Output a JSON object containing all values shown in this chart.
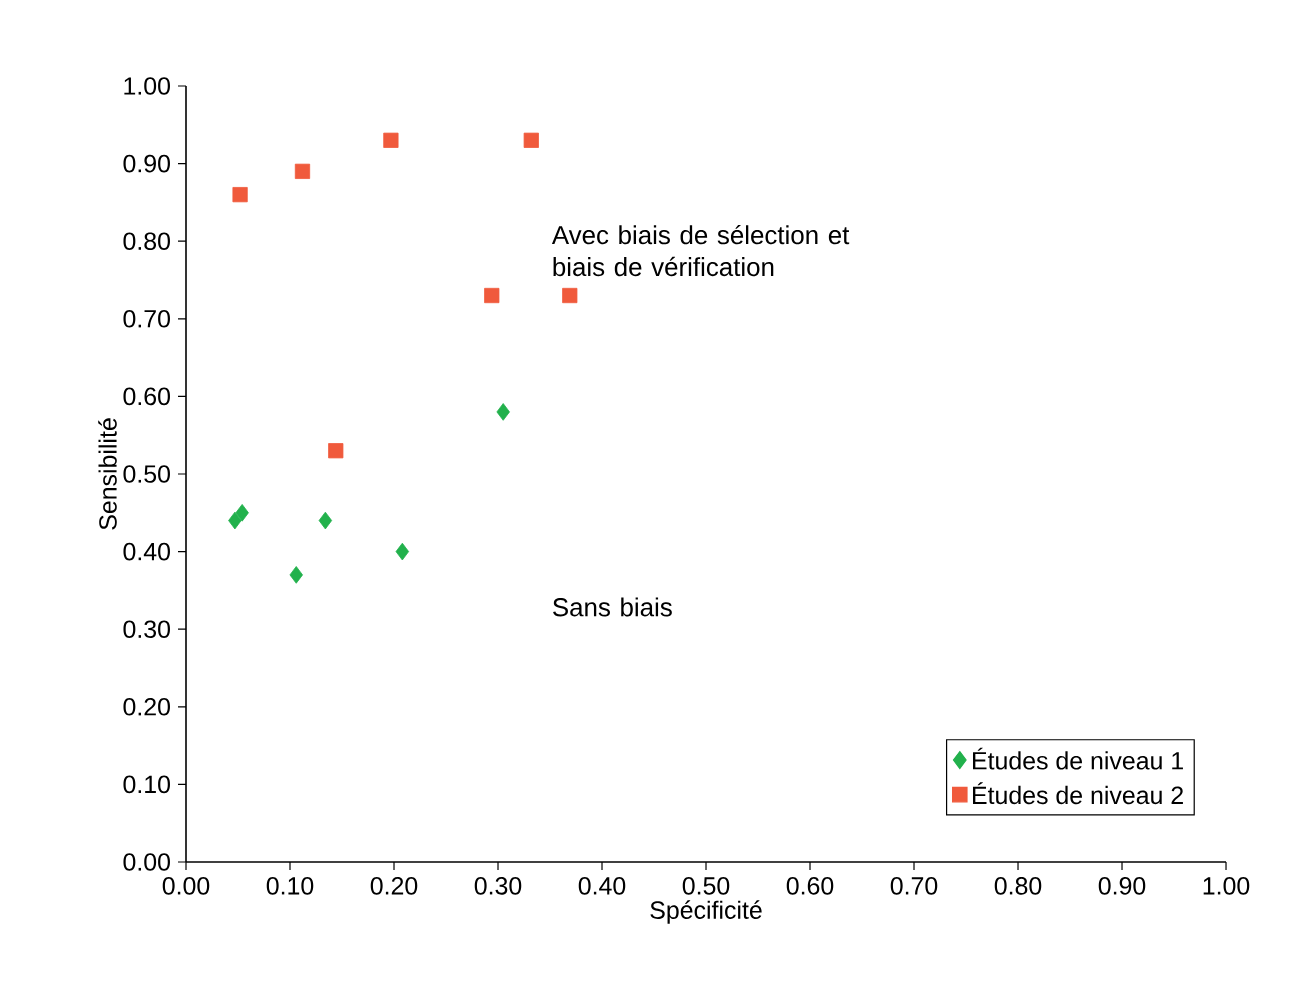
{
  "chart_data": {
    "type": "scatter",
    "xlabel": "Spécificité",
    "ylabel": "Sensibilité",
    "xlim": [
      0,
      1
    ],
    "ylim": [
      0,
      1
    ],
    "xticks": [
      {
        "value": 0,
        "label": "0.00"
      },
      {
        "value": 0.1,
        "label": "0.10"
      },
      {
        "value": 0.2,
        "label": "0.20"
      },
      {
        "value": 0.3,
        "label": "0.30"
      },
      {
        "value": 0.4,
        "label": "0.40"
      },
      {
        "value": 0.5,
        "label": "0.50"
      },
      {
        "value": 0.6,
        "label": "0.60"
      },
      {
        "value": 0.7,
        "label": "0.70"
      },
      {
        "value": 0.8,
        "label": "0.80"
      },
      {
        "value": 0.9,
        "label": "0.90"
      },
      {
        "value": 1,
        "label": "1.00"
      }
    ],
    "yticks": [
      {
        "value": 0,
        "label": "0.00"
      },
      {
        "value": 0.1,
        "label": "0.10"
      },
      {
        "value": 0.2,
        "label": "0.20"
      },
      {
        "value": 0.3,
        "label": "0.30"
      },
      {
        "value": 0.4,
        "label": "0.40"
      },
      {
        "value": 0.5,
        "label": "0.50"
      },
      {
        "value": 0.6,
        "label": "0.60"
      },
      {
        "value": 0.7,
        "label": "0.70"
      },
      {
        "value": 0.8,
        "label": "0.80"
      },
      {
        "value": 0.9,
        "label": "0.90"
      },
      {
        "value": 1,
        "label": "1.00"
      }
    ],
    "grid": false,
    "legend": "bottom right",
    "series": [
      {
        "name": "Études de niveau 1",
        "color": "#22b14c",
        "marker": "diamond",
        "x": [
          0.047,
          0.054,
          0.134,
          0.106,
          0.208,
          0.305
        ],
        "values": [
          0.44,
          0.45,
          0.44,
          0.37,
          0.4,
          0.58
        ]
      },
      {
        "name": "Études de niveau 2",
        "color": "#f05a3c",
        "marker": "square",
        "x": [
          0.052,
          0.112,
          0.197,
          0.332,
          0.294,
          0.369,
          0.144
        ],
        "values": [
          0.86,
          0.89,
          0.93,
          0.93,
          0.73,
          0.73,
          0.53
        ]
      }
    ],
    "annotations": [
      "Avec biais de sélection et biais de vérification",
      "Sans biais"
    ]
  }
}
